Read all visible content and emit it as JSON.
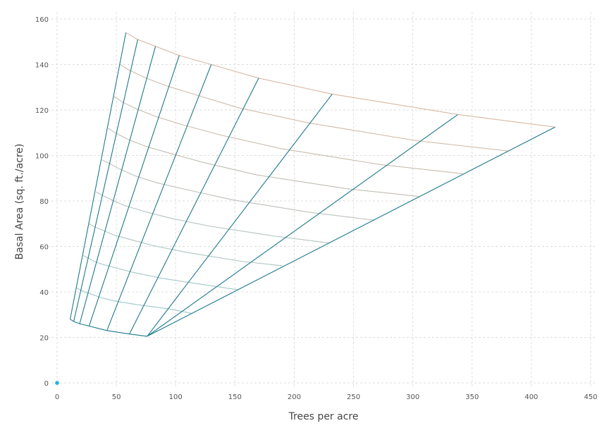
{
  "chart_data": {
    "type": "line",
    "title": "",
    "xlabel": "Trees per acre",
    "ylabel": "Basal Area (sq. ft./acre)",
    "xlim": [
      0,
      450
    ],
    "ylim": [
      0,
      160
    ],
    "x_ticks": [
      "0",
      "50",
      "100",
      "150",
      "200",
      "250",
      "300",
      "350",
      "400",
      "450"
    ],
    "y_ticks": [
      "0",
      "20",
      "40",
      "60",
      "80",
      "100",
      "120",
      "140",
      "160"
    ],
    "grid": true,
    "colors": {
      "diameter_lines": "#1f7a8c",
      "stocking_high": "#d9b8a3",
      "stocking_low": "#9cc9cc",
      "marker": "#1eb4e8"
    },
    "diameter_lines": [
      {
        "points": [
          [
            11,
            28
          ],
          [
            58,
            154
          ]
        ]
      },
      {
        "points": [
          [
            14,
            27
          ],
          [
            68,
            151
          ]
        ]
      },
      {
        "points": [
          [
            19,
            26
          ],
          [
            83,
            148
          ]
        ]
      },
      {
        "points": [
          [
            27,
            25
          ],
          [
            103,
            144
          ]
        ]
      },
      {
        "points": [
          [
            42,
            23
          ],
          [
            130,
            140
          ]
        ]
      },
      {
        "points": [
          [
            61,
            21.5
          ],
          [
            170,
            134
          ]
        ]
      },
      {
        "points": [
          [
            76,
            20.5
          ],
          [
            232,
            127
          ]
        ]
      },
      {
        "points": [
          [
            76,
            20.5
          ],
          [
            338,
            118
          ]
        ]
      },
      {
        "points": [
          [
            76,
            20.5
          ],
          [
            420,
            112.5
          ]
        ]
      }
    ],
    "stocking_lines": [
      {
        "points": [
          [
            58,
            154
          ],
          [
            68,
            151
          ],
          [
            83,
            148
          ],
          [
            103,
            144
          ],
          [
            130,
            140
          ],
          [
            170,
            134
          ],
          [
            232,
            127
          ],
          [
            338,
            118
          ],
          [
            420,
            112.5
          ]
        ]
      },
      {
        "points": [
          [
            53,
            140
          ],
          [
            61,
            137.5
          ],
          [
            75,
            134
          ],
          [
            93,
            130.5
          ],
          [
            118,
            126.5
          ],
          [
            153,
            121
          ],
          [
            210,
            114.5
          ],
          [
            303,
            106.5
          ],
          [
            380,
            102
          ]
        ]
      },
      {
        "points": [
          [
            48,
            126
          ],
          [
            55,
            123.5
          ],
          [
            67,
            120.5
          ],
          [
            84,
            117
          ],
          [
            106,
            113.5
          ],
          [
            138,
            109
          ],
          [
            189,
            103
          ],
          [
            273,
            96
          ],
          [
            342,
            92
          ]
        ]
      },
      {
        "points": [
          [
            43,
            112
          ],
          [
            49,
            110
          ],
          [
            60,
            107
          ],
          [
            75,
            104
          ],
          [
            95,
            101
          ],
          [
            123,
            97
          ],
          [
            168,
            91.5
          ],
          [
            243,
            85.5
          ],
          [
            305,
            82
          ]
        ]
      },
      {
        "points": [
          [
            38,
            98
          ],
          [
            44,
            96.5
          ],
          [
            53,
            94
          ],
          [
            66,
            91
          ],
          [
            84,
            88
          ],
          [
            109,
            85
          ],
          [
            148,
            80.5
          ],
          [
            213,
            75
          ],
          [
            268,
            71.5
          ]
        ]
      },
      {
        "points": [
          [
            33,
            84
          ],
          [
            38,
            82.5
          ],
          [
            46,
            80.5
          ],
          [
            57,
            78
          ],
          [
            73,
            75.5
          ],
          [
            95,
            72.5
          ],
          [
            128,
            69
          ],
          [
            184,
            64.5
          ],
          [
            230,
            61.5
          ]
        ]
      },
      {
        "points": [
          [
            27,
            70
          ],
          [
            32,
            68.5
          ],
          [
            39,
            67
          ],
          [
            48,
            65
          ],
          [
            62,
            63
          ],
          [
            80,
            60.5
          ],
          [
            108,
            57.5
          ],
          [
            155,
            53.5
          ],
          [
            190,
            51.5
          ]
        ]
      },
      {
        "points": [
          [
            22,
            56
          ],
          [
            26,
            55
          ],
          [
            31,
            53.5
          ],
          [
            39,
            52
          ],
          [
            50,
            50.5
          ],
          [
            65,
            48.5
          ],
          [
            88,
            46
          ],
          [
            126,
            43
          ],
          [
            152,
            41
          ]
        ]
      },
      {
        "points": [
          [
            16,
            42
          ],
          [
            19,
            41
          ],
          [
            23,
            40
          ],
          [
            29,
            39
          ],
          [
            37,
            37.5
          ],
          [
            49,
            36
          ],
          [
            66,
            34.5
          ],
          [
            95,
            32.5
          ],
          [
            114,
            30.5
          ]
        ]
      },
      {
        "points": [
          [
            11,
            28
          ],
          [
            14,
            27
          ],
          [
            19,
            26
          ],
          [
            27,
            25
          ],
          [
            42,
            23
          ],
          [
            61,
            21.5
          ],
          [
            76,
            20.5
          ]
        ]
      }
    ],
    "marker": {
      "x": 0,
      "y": 0
    }
  }
}
